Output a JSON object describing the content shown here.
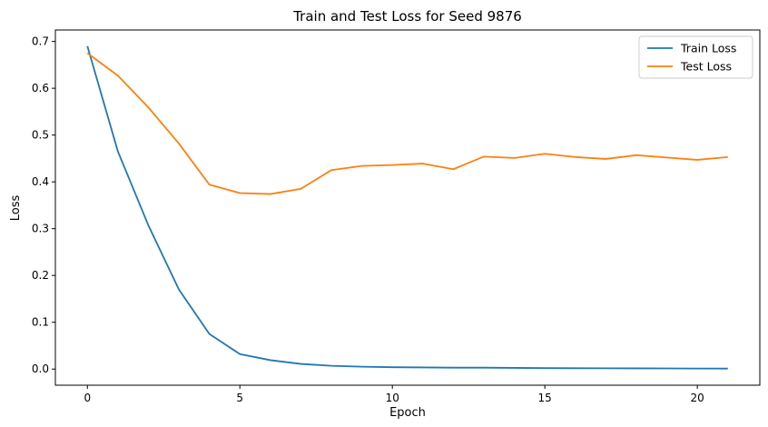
{
  "chart_data": {
    "type": "line",
    "title": "Train and Test Loss for Seed 9876",
    "xlabel": "Epoch",
    "ylabel": "Loss",
    "xlim": [
      -1.05,
      22.05
    ],
    "ylim": [
      -0.0345,
      0.7245
    ],
    "xticks": [
      0,
      5,
      10,
      15,
      20
    ],
    "xtick_labels": [
      "0",
      "5",
      "10",
      "15",
      "20"
    ],
    "yticks": [
      0.0,
      0.1,
      0.2,
      0.3,
      0.4,
      0.5,
      0.6,
      0.7
    ],
    "ytick_labels": [
      "0.0",
      "0.1",
      "0.2",
      "0.3",
      "0.4",
      "0.5",
      "0.6",
      "0.7"
    ],
    "grid": false,
    "legend_position": "top-right",
    "x": [
      0,
      1,
      2,
      3,
      4,
      5,
      6,
      7,
      8,
      9,
      10,
      11,
      12,
      13,
      14,
      15,
      16,
      17,
      18,
      19,
      20,
      21
    ],
    "series": [
      {
        "name": "Train Loss",
        "color": "#1f77b4",
        "values": [
          0.69,
          0.465,
          0.307,
          0.17,
          0.075,
          0.032,
          0.019,
          0.011,
          0.007,
          0.005,
          0.004,
          0.0035,
          0.003,
          0.003,
          0.0025,
          0.002,
          0.0018,
          0.0016,
          0.0015,
          0.0014,
          0.0012,
          0.001
        ]
      },
      {
        "name": "Test Loss",
        "color": "#ff7f0e",
        "values": [
          0.675,
          0.627,
          0.559,
          0.482,
          0.394,
          0.376,
          0.374,
          0.385,
          0.425,
          0.434,
          0.436,
          0.439,
          0.427,
          0.454,
          0.451,
          0.46,
          0.453,
          0.449,
          0.457,
          0.452,
          0.447,
          0.453
        ]
      }
    ]
  }
}
